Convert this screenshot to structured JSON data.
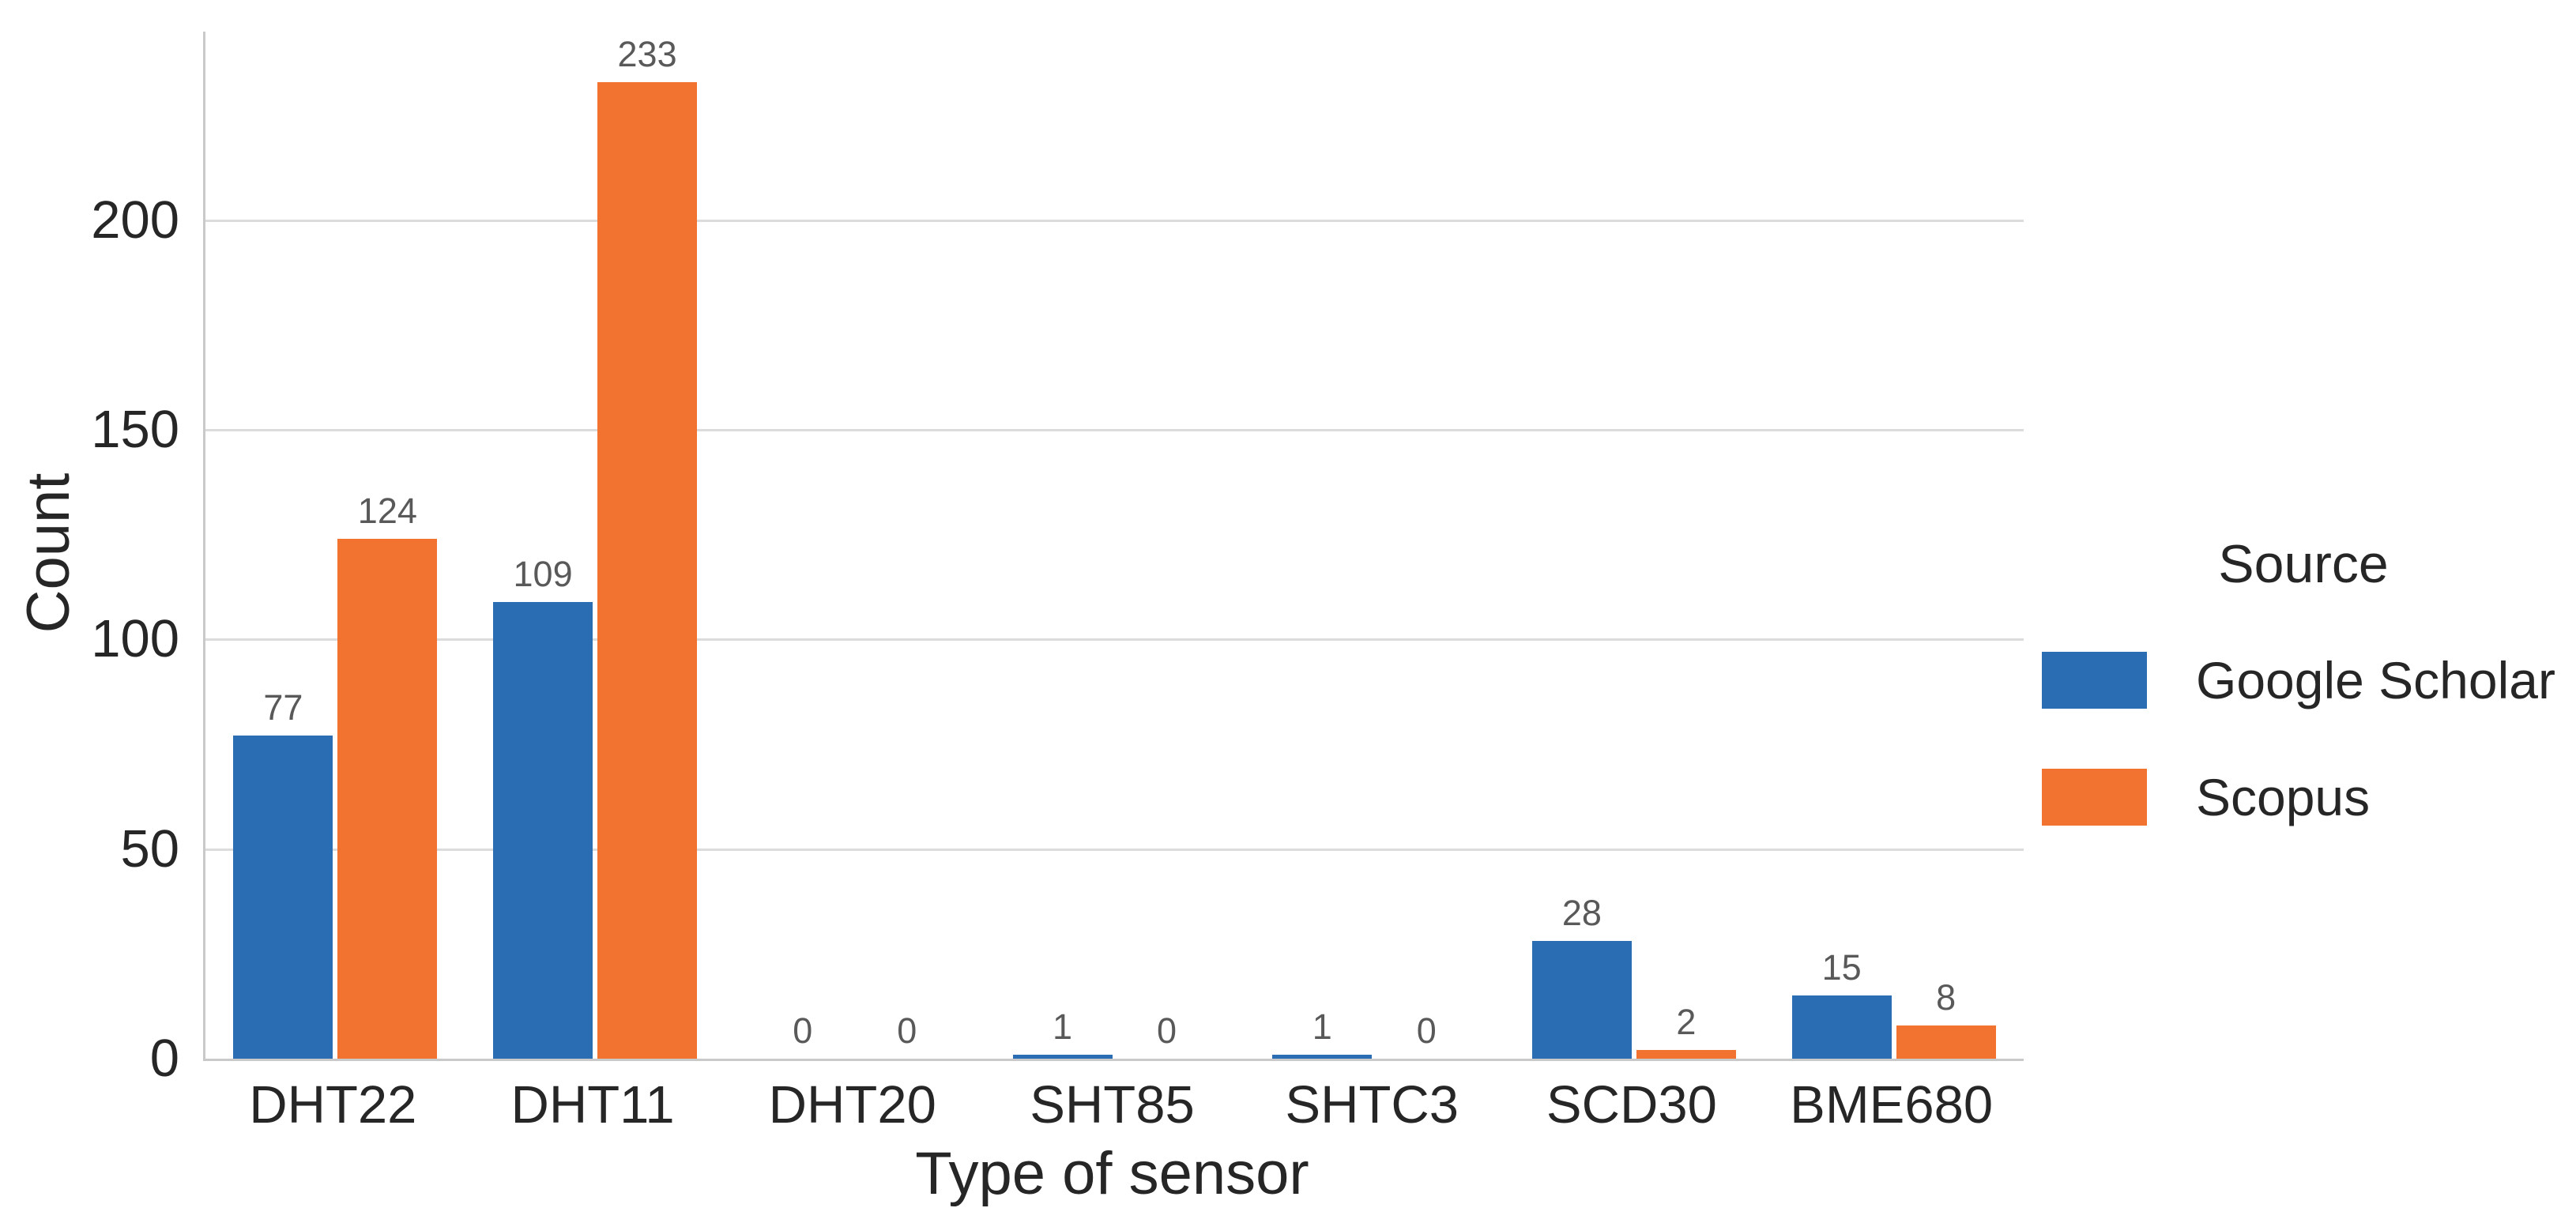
{
  "figure": {
    "background": "#ffffff",
    "grid_color": "#dcdcdc",
    "spine_color": "#c9c9c9",
    "annotation_color": "#595959",
    "text_color": "#262626"
  },
  "chart_data": {
    "type": "bar",
    "title": "",
    "xlabel": "Type of sensor",
    "ylabel": "Count",
    "categories": [
      "DHT22",
      "DHT11",
      "DHT20",
      "SHT85",
      "SHTC3",
      "SCD30",
      "BME680"
    ],
    "series": [
      {
        "name": "Google Scholar",
        "color": "#2b6db3",
        "values": [
          77,
          109,
          0,
          1,
          1,
          28,
          15
        ]
      },
      {
        "name": "Scopus",
        "color": "#f2722f",
        "values": [
          124,
          233,
          0,
          0,
          0,
          2,
          8
        ]
      }
    ],
    "yticks": [
      0,
      50,
      100,
      150,
      200
    ],
    "ylim": [
      0,
      245
    ],
    "grid": true,
    "bar_labels": true,
    "legend": {
      "title": "Source",
      "position": "right"
    }
  }
}
